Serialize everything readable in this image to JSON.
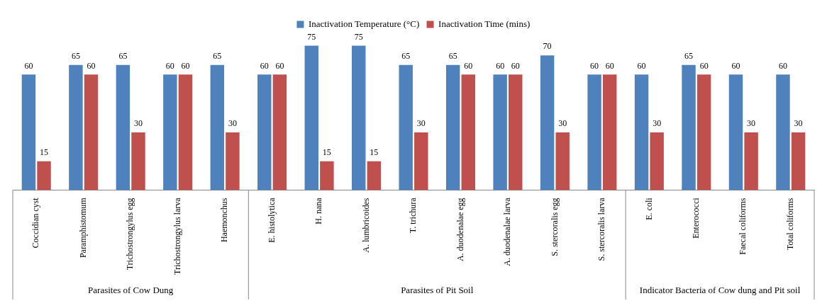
{
  "chart_data": {
    "type": "bar",
    "categories": [
      "Coccidian cyst",
      "Paramphistomum",
      "Trichostrongylus egg",
      "Trichostrongylus larva",
      "Haemonchus",
      "E. histolytica",
      "H. nana",
      "A. lumbricoides",
      "T. trichura",
      "A. duodenalae egg",
      "A. duodenalae larva",
      "S. stercoralis egg",
      "S. stercoralis larva",
      "E. coli",
      "Enterococci",
      "Faecal coliforms",
      "Total coliforms"
    ],
    "series": [
      {
        "name": "Inactivation Temperature (°C)",
        "color": "#4f81bd",
        "values": [
          60,
          65,
          65,
          60,
          65,
          60,
          75,
          75,
          65,
          65,
          60,
          70,
          60,
          60,
          65,
          60,
          60
        ]
      },
      {
        "name": "Inactivation Time (mins)",
        "color": "#c0504d",
        "values": [
          15,
          60,
          30,
          60,
          30,
          60,
          15,
          15,
          30,
          60,
          60,
          30,
          60,
          30,
          60,
          30,
          30
        ]
      }
    ],
    "annotations": [
      "Parasites of Cow Dung",
      "Parasites of Pit Soil",
      "Indicator Bacteria of Cow dung and Pit soil"
    ],
    "data_labels": true,
    "legend": "top",
    "grid": false,
    "tick_labels": "x"
  }
}
